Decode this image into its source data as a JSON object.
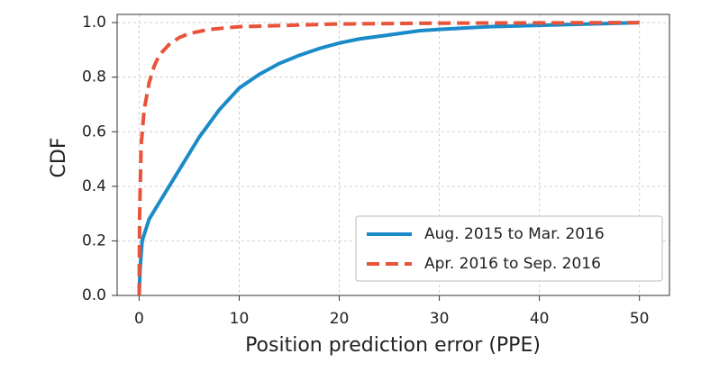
{
  "chart_data": {
    "type": "line",
    "xlabel": "Position prediction error (PPE)",
    "ylabel": "CDF",
    "xlim": [
      -2.2,
      53
    ],
    "ylim": [
      0,
      1.03
    ],
    "xticks": [
      0,
      10,
      20,
      30,
      40,
      50
    ],
    "yticks": [
      {
        "value": 0,
        "label": "0.0"
      },
      0.2,
      0.4,
      0.6,
      0.8,
      {
        "value": 1,
        "label": "1.0"
      }
    ],
    "grid": true,
    "legend": "lower right",
    "series": [
      {
        "name": "Aug. 2015 to Mar. 2016",
        "color": "#1b8bc8",
        "dash": "solid",
        "x": [
          0,
          0.1,
          0.3,
          1,
          2,
          3,
          4,
          5,
          6,
          7,
          8,
          9,
          10,
          12,
          14,
          16,
          18,
          20,
          22,
          25,
          28,
          30,
          35,
          40,
          45,
          50
        ],
        "values": [
          0,
          0.1,
          0.2,
          0.28,
          0.34,
          0.4,
          0.46,
          0.52,
          0.58,
          0.63,
          0.68,
          0.72,
          0.76,
          0.81,
          0.85,
          0.88,
          0.905,
          0.925,
          0.94,
          0.955,
          0.97,
          0.975,
          0.985,
          0.99,
          0.995,
          1
        ]
      },
      {
        "name": "Apr. 2016 to Sep. 2016",
        "color": "#e8533a",
        "dash": "dashed",
        "x": [
          0,
          0.05,
          0.2,
          0.5,
          1,
          1.5,
          2,
          3,
          4,
          5,
          7,
          10,
          15,
          20,
          30,
          50
        ],
        "values": [
          0,
          0.3,
          0.55,
          0.68,
          0.78,
          0.84,
          0.88,
          0.92,
          0.945,
          0.96,
          0.975,
          0.985,
          0.99,
          0.995,
          0.998,
          1
        ]
      }
    ]
  }
}
